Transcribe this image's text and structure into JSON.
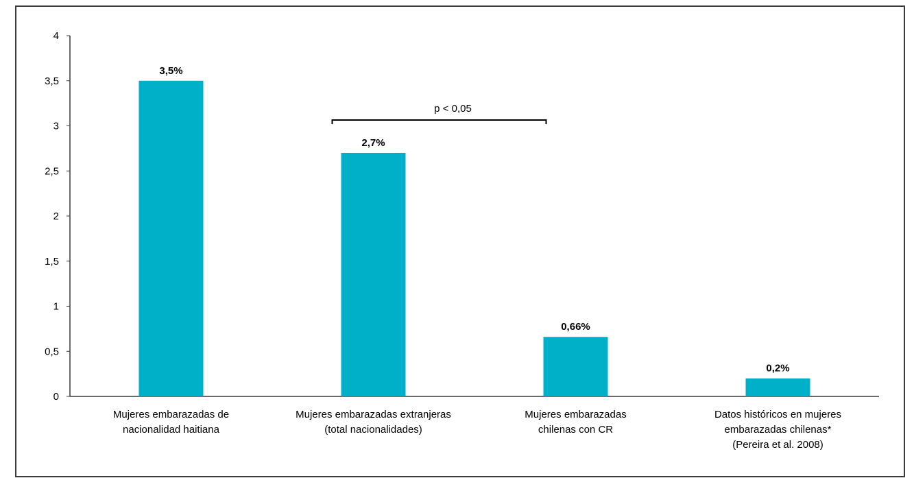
{
  "chart_data": {
    "type": "bar",
    "categories": [
      [
        "Mujeres embarazadas de",
        "nacionalidad haitiana"
      ],
      [
        "Mujeres embarazadas extranjeras",
        "(total nacionalidades)"
      ],
      [
        "Mujeres embarazadas",
        "chilenas con CR"
      ],
      [
        "Datos históricos en mujeres",
        "embarazadas chilenas*",
        "(Pereira et al. 2008)"
      ]
    ],
    "values": [
      3.5,
      2.7,
      0.66,
      0.2
    ],
    "data_labels": [
      "3,5%",
      "2,7%",
      "0,66%",
      "0,2%"
    ],
    "yticks": [
      0,
      0.5,
      1,
      1.5,
      2,
      2.5,
      3,
      3.5,
      4
    ],
    "ytick_labels": [
      "0",
      "0,5",
      "1",
      "1,5",
      "2",
      "2,5",
      "3",
      "3,5",
      "4"
    ],
    "ylim": [
      0,
      4
    ],
    "bar_color": "#00b0c8",
    "grid": false,
    "legend": "none",
    "annotation": {
      "text": "p  < 0,05",
      "from_category": 1,
      "to_category": 2
    }
  }
}
